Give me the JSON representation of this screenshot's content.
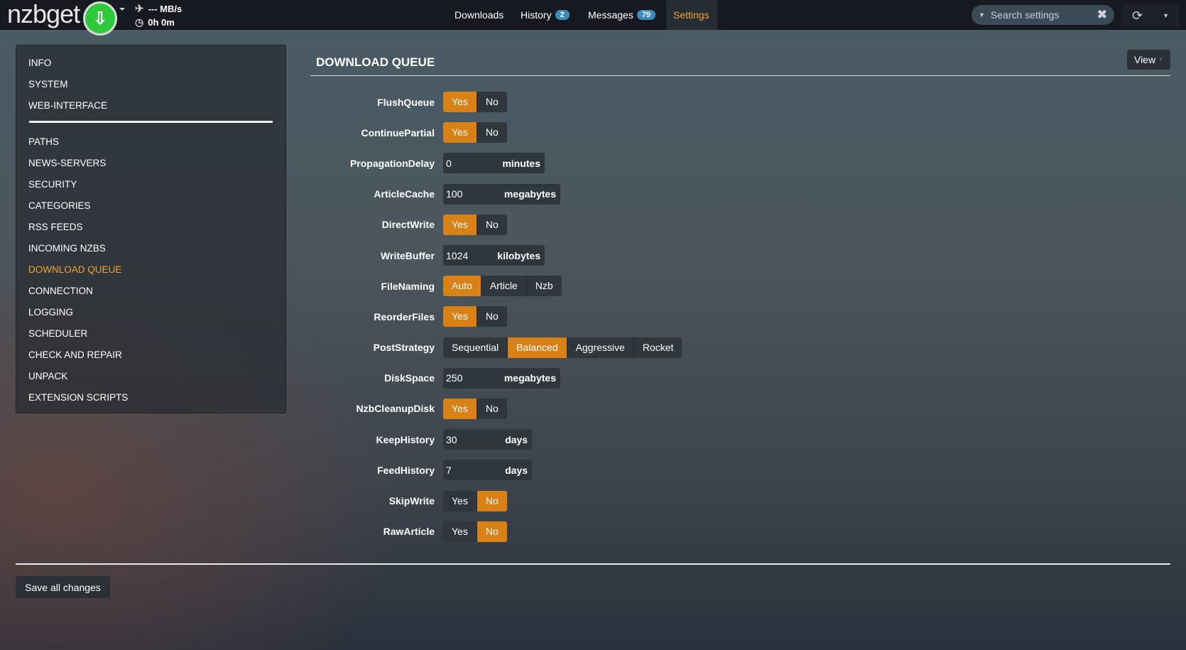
{
  "header": {
    "logo": "nzbget",
    "speed": "--- MB/s",
    "time": "0h 0m",
    "menu": [
      {
        "label": "Downloads"
      },
      {
        "label": "History",
        "badge": "2"
      },
      {
        "label": "Messages",
        "badge": "79"
      },
      {
        "label": "Settings",
        "active": true
      }
    ],
    "search_placeholder": "Search settings"
  },
  "sidebar": {
    "items_top": [
      "INFO",
      "SYSTEM",
      "WEB-INTERFACE"
    ],
    "items": [
      "PATHS",
      "NEWS-SERVERS",
      "SECURITY",
      "CATEGORIES",
      "RSS FEEDS",
      "INCOMING NZBS",
      "DOWNLOAD QUEUE",
      "CONNECTION",
      "LOGGING",
      "SCHEDULER",
      "CHECK AND REPAIR",
      "UNPACK",
      "EXTENSION SCRIPTS"
    ],
    "active": "DOWNLOAD QUEUE"
  },
  "main": {
    "title": "DOWNLOAD QUEUE",
    "view_label": "View",
    "settings": [
      {
        "name": "FlushQueue",
        "type": "choice",
        "options": [
          "Yes",
          "No"
        ],
        "value": "Yes"
      },
      {
        "name": "ContinuePartial",
        "type": "choice",
        "options": [
          "Yes",
          "No"
        ],
        "value": "Yes"
      },
      {
        "name": "PropagationDelay",
        "type": "number",
        "value": "0",
        "unit": "minutes"
      },
      {
        "name": "ArticleCache",
        "type": "number",
        "value": "100",
        "unit": "megabytes"
      },
      {
        "name": "DirectWrite",
        "type": "choice",
        "options": [
          "Yes",
          "No"
        ],
        "value": "Yes"
      },
      {
        "name": "WriteBuffer",
        "type": "number",
        "value": "1024",
        "unit": "kilobytes"
      },
      {
        "name": "FileNaming",
        "type": "choice",
        "options": [
          "Auto",
          "Article",
          "Nzb"
        ],
        "value": "Auto"
      },
      {
        "name": "ReorderFiles",
        "type": "choice",
        "options": [
          "Yes",
          "No"
        ],
        "value": "Yes"
      },
      {
        "name": "PostStrategy",
        "type": "choice",
        "options": [
          "Sequential",
          "Balanced",
          "Aggressive",
          "Rocket"
        ],
        "value": "Balanced"
      },
      {
        "name": "DiskSpace",
        "type": "number",
        "value": "250",
        "unit": "megabytes"
      },
      {
        "name": "NzbCleanupDisk",
        "type": "choice",
        "options": [
          "Yes",
          "No"
        ],
        "value": "Yes"
      },
      {
        "name": "KeepHistory",
        "type": "number",
        "value": "30",
        "unit": "days"
      },
      {
        "name": "FeedHistory",
        "type": "number",
        "value": "7",
        "unit": "days"
      },
      {
        "name": "SkipWrite",
        "type": "choice",
        "options": [
          "Yes",
          "No"
        ],
        "value": "No"
      },
      {
        "name": "RawArticle",
        "type": "choice",
        "options": [
          "Yes",
          "No"
        ],
        "value": "No"
      }
    ],
    "save_label": "Save all changes"
  },
  "colors": {
    "accent": "#d88117",
    "active_text": "#f0a430",
    "badge": "#3a8dbd",
    "download_button": "#2ec93a"
  }
}
